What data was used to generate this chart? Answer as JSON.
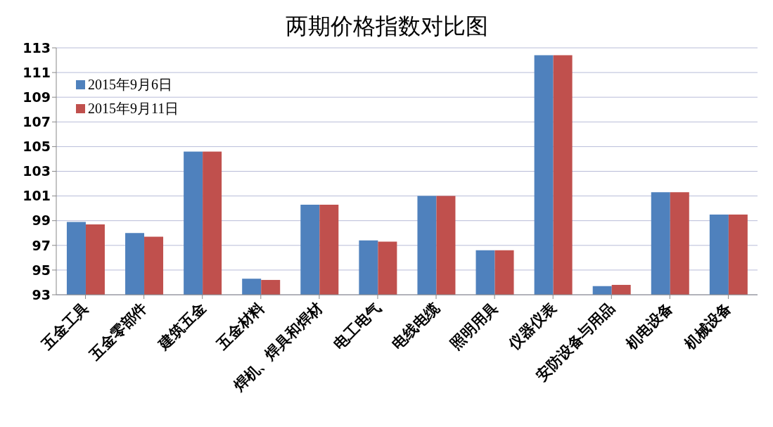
{
  "chart_data": {
    "type": "bar",
    "title": "两期价格指数对比图",
    "categories": [
      "五金工具",
      "五金零部件",
      "建筑五金",
      "五金材料",
      "焊机、焊具和焊材",
      "电工电气",
      "电线电缆",
      "照明用具",
      "仪器仪表",
      "安防设备与用品",
      "机电设备",
      "机械设备"
    ],
    "series": [
      {
        "name": "2015年9月6日",
        "color": "#4f81bd",
        "values": [
          98.9,
          98.0,
          104.6,
          94.3,
          100.3,
          97.4,
          101.0,
          96.6,
          112.4,
          93.7,
          101.3,
          99.5
        ]
      },
      {
        "name": "2015年9月11日",
        "color": "#c0504d",
        "values": [
          98.7,
          97.7,
          104.6,
          94.2,
          100.3,
          97.3,
          101.0,
          96.6,
          112.4,
          93.8,
          101.3,
          99.5
        ]
      }
    ],
    "ylim": [
      93,
      113
    ],
    "yticks": [
      93,
      95,
      97,
      99,
      101,
      103,
      105,
      107,
      109,
      111,
      113
    ],
    "grid": "y",
    "legend": "top left"
  }
}
